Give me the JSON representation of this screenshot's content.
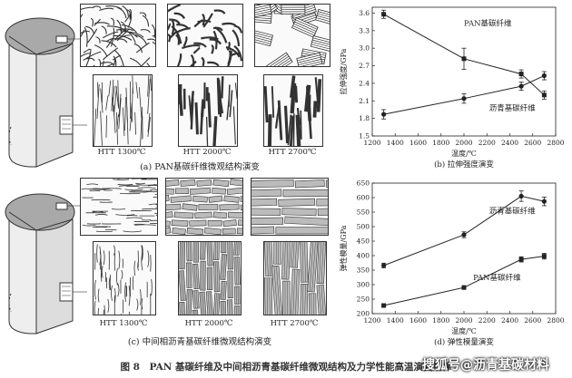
{
  "figure_caption": "图 8　PAN 基碳纤维及中间相沥青基碳纤维微观结构及力学性能高温演变规律",
  "watermark": "搜狐号@沥青基碳材料",
  "panel_a": {
    "caption": "(a) PAN基碳纤维微观结构演变",
    "htt": [
      "HTT 1300℃",
      "HTT 2000℃",
      "HTT 2700℃"
    ]
  },
  "panel_c": {
    "caption": "(c) 中间相沥青基碳纤维微观结构演变",
    "htt": [
      "HTT 1300℃",
      "HTT 2000℃",
      "HTT 2700℃"
    ]
  },
  "chart_data": [
    {
      "type": "line",
      "panel": "(b) 拉伸强度演变",
      "xlabel": "温度/℃",
      "ylabel": "拉伸强度/GPa",
      "xlim": [
        1200,
        2800
      ],
      "ylim": [
        1.5,
        3.7
      ],
      "xticks": [
        1200,
        1400,
        1600,
        1800,
        2000,
        2200,
        2400,
        2600,
        2800
      ],
      "yticks": [
        1.5,
        1.8,
        2.1,
        2.4,
        2.7,
        3.0,
        3.3,
        3.6
      ],
      "series": [
        {
          "name": "PAN基碳纤维",
          "marker": "square",
          "x": [
            1300,
            2000,
            2500,
            2700
          ],
          "y": [
            3.58,
            2.82,
            2.56,
            2.2
          ],
          "err": [
            0.07,
            0.18,
            0.07,
            0.07
          ]
        },
        {
          "name": "沥青基碳纤维",
          "marker": "circle",
          "x": [
            1300,
            2000,
            2500,
            2700
          ],
          "y": [
            1.87,
            2.14,
            2.35,
            2.53
          ],
          "err": [
            0.08,
            0.08,
            0.07,
            0.07
          ]
        }
      ]
    },
    {
      "type": "line",
      "panel": "(d) 弹性模量演变",
      "xlabel": "温度/℃",
      "ylabel": "弹性模量/GPa",
      "xlim": [
        1200,
        2800
      ],
      "ylim": [
        200,
        650
      ],
      "xticks": [
        1200,
        1400,
        1600,
        1800,
        2000,
        2200,
        2400,
        2600,
        2800
      ],
      "yticks": [
        200,
        250,
        300,
        350,
        400,
        450,
        500,
        550,
        600,
        650
      ],
      "series": [
        {
          "name": "沥青基碳纤维",
          "marker": "circle",
          "x": [
            1300,
            2000,
            2500,
            2700
          ],
          "y": [
            366,
            472,
            605,
            587
          ],
          "err": [
            8,
            10,
            18,
            15
          ]
        },
        {
          "name": "PAN基碳纤维",
          "marker": "square",
          "x": [
            1300,
            2000,
            2500,
            2700
          ],
          "y": [
            228,
            290,
            387,
            398
          ],
          "err": [
            4,
            6,
            9,
            10
          ]
        }
      ]
    }
  ]
}
